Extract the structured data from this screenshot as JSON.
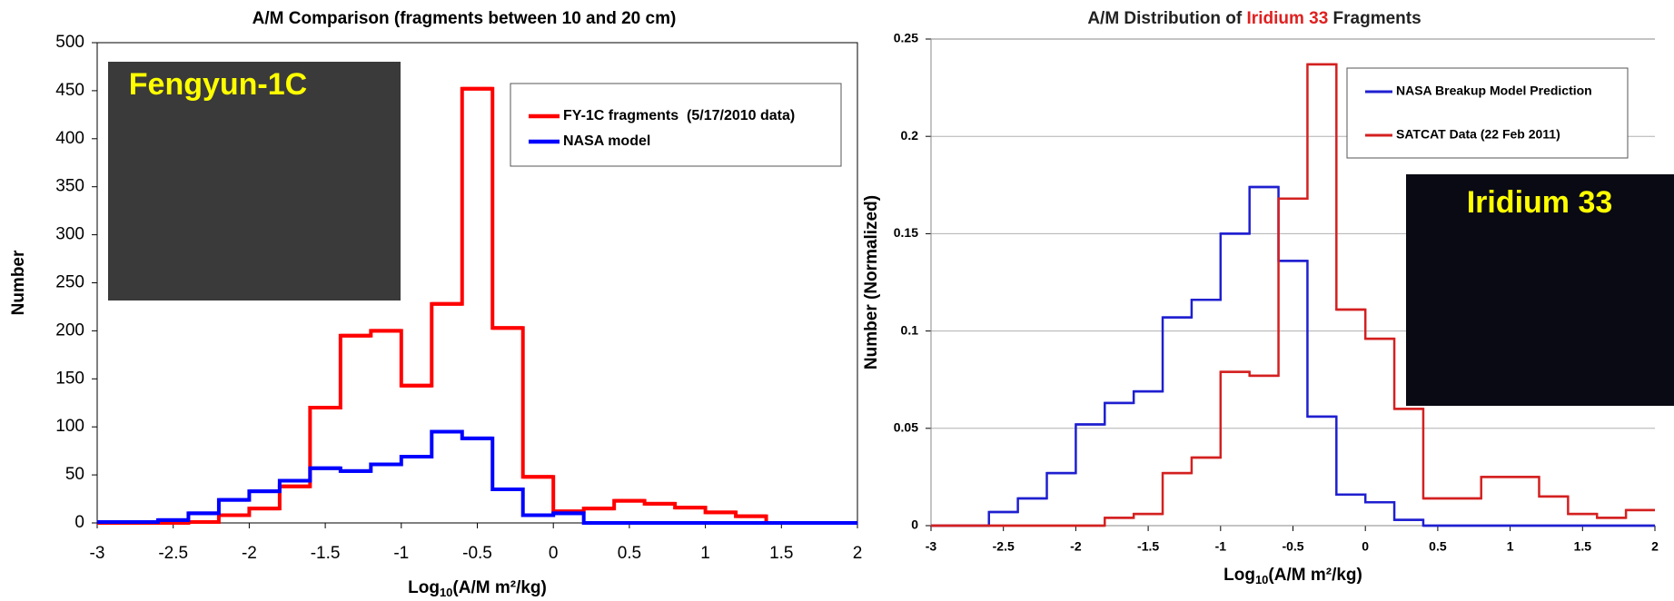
{
  "chart_data": [
    {
      "type": "histogram",
      "title_parts": [
        {
          "text": "A/M Comparison (fragments between 10 and 20 cm)",
          "color": "#000000"
        }
      ],
      "xlabel": {
        "base": "Log",
        "sub": "10",
        "rest": "(A/M m²/kg)"
      },
      "ylabel": "Number",
      "inset_label": "Fengyun-1C",
      "bins": [
        -3,
        -2.8,
        -2.6,
        -2.4,
        -2.2,
        -2,
        -1.8,
        -1.6,
        -1.4,
        -1.2,
        -1,
        -0.8,
        -0.6,
        -0.4,
        -0.2,
        0,
        0.2,
        0.4,
        0.6,
        0.8,
        1,
        1.2,
        1.4,
        1.6,
        1.8,
        2
      ],
      "series": [
        {
          "name": "FY-1C fragments  (5/17/2010 data)",
          "color": "#ff0000",
          "values": [
            0,
            0,
            0,
            1,
            8,
            15,
            38,
            120,
            195,
            200,
            143,
            228,
            452,
            203,
            48,
            12,
            15,
            23,
            20,
            16,
            11,
            7,
            0,
            0,
            0
          ]
        },
        {
          "name": "NASA model",
          "color": "#0000ff",
          "values": [
            1,
            1,
            3,
            10,
            24,
            33,
            44,
            57,
            54,
            61,
            69,
            95,
            88,
            35,
            8,
            10,
            0,
            0,
            0,
            0,
            0,
            0,
            0,
            0,
            0
          ]
        }
      ],
      "xlim": [
        -3,
        2
      ],
      "xticks": [
        -3,
        -2.5,
        -2,
        -1.5,
        -1,
        -0.5,
        0,
        0.5,
        1,
        1.5,
        2
      ],
      "ylim": [
        0,
        500
      ],
      "yticks": [
        0,
        50,
        100,
        150,
        200,
        250,
        300,
        350,
        400,
        450,
        500
      ],
      "grid": false
    },
    {
      "type": "histogram",
      "title_parts": [
        {
          "text": "A/M Distribution of ",
          "color": "#222222"
        },
        {
          "text": "Iridium 33",
          "color": "#e02020"
        },
        {
          "text": " Fragments",
          "color": "#222222"
        }
      ],
      "xlabel": {
        "base": "Log",
        "sub": "10",
        "rest": "(A/M m²/kg)"
      },
      "ylabel": "Number (Normalized)",
      "inset_label": "Iridium 33",
      "bins": [
        -3,
        -2.8,
        -2.6,
        -2.4,
        -2.2,
        -2,
        -1.8,
        -1.6,
        -1.4,
        -1.2,
        -1,
        -0.8,
        -0.6,
        -0.4,
        -0.2,
        0,
        0.2,
        0.4,
        0.6,
        0.8,
        1,
        1.2,
        1.4,
        1.6,
        1.8,
        2
      ],
      "series": [
        {
          "name": "NASA Breakup Model Prediction",
          "color": "#1f1fd0",
          "values": [
            0,
            0,
            0.007,
            0.014,
            0.027,
            0.052,
            0.063,
            0.069,
            0.107,
            0.116,
            0.15,
            0.174,
            0.136,
            0.056,
            0.016,
            0.012,
            0.003,
            0,
            0,
            0,
            0,
            0,
            0,
            0,
            0
          ]
        },
        {
          "name": "SATCAT Data (22 Feb 2011)",
          "color": "#d42020",
          "values": [
            0,
            0,
            0,
            0,
            0,
            0,
            0.004,
            0.006,
            0.027,
            0.035,
            0.079,
            0.077,
            0.168,
            0.237,
            0.111,
            0.096,
            0.06,
            0.014,
            0.014,
            0.025,
            0.025,
            0.015,
            0.006,
            0.004,
            0.008
          ]
        }
      ],
      "xlim": [
        -3,
        2
      ],
      "xticks": [
        -3,
        -2.5,
        -2,
        -1.5,
        -1,
        -0.5,
        0,
        0.5,
        1,
        1.5,
        2
      ],
      "ylim": [
        0,
        0.25
      ],
      "yticks": [
        0,
        0.05,
        0.1,
        0.15,
        0.2,
        0.25
      ],
      "grid": true
    }
  ]
}
